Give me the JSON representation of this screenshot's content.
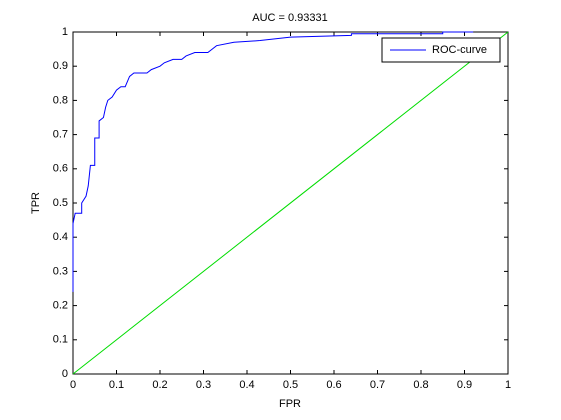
{
  "chart_data": {
    "type": "line",
    "title": "AUC = 0.93331",
    "xlabel": "FPR",
    "ylabel": "TPR",
    "series": [
      {
        "name": "ROC-curve",
        "color": "#0000ff",
        "x": [
          0,
          0,
          0.005,
          0.02,
          0.02,
          0.03,
          0.035,
          0.04,
          0.05,
          0.05,
          0.06,
          0.06,
          0.07,
          0.075,
          0.08,
          0.09,
          0.1,
          0.11,
          0.12,
          0.13,
          0.14,
          0.17,
          0.18,
          0.2,
          0.21,
          0.23,
          0.25,
          0.26,
          0.28,
          0.31,
          0.32,
          0.33,
          0.37,
          0.43,
          0.5,
          0.64,
          0.64,
          0.85,
          0.85,
          0.92
        ],
        "values": [
          0.24,
          0.44,
          0.47,
          0.47,
          0.5,
          0.52,
          0.55,
          0.61,
          0.61,
          0.69,
          0.69,
          0.74,
          0.75,
          0.78,
          0.8,
          0.81,
          0.83,
          0.84,
          0.84,
          0.87,
          0.88,
          0.88,
          0.89,
          0.9,
          0.91,
          0.92,
          0.92,
          0.93,
          0.94,
          0.94,
          0.95,
          0.96,
          0.97,
          0.975,
          0.985,
          0.99,
          0.995,
          0.995,
          1,
          1
        ]
      }
    ],
    "reference_line": {
      "color": "#00dd00",
      "x": [
        0,
        1
      ],
      "values": [
        0,
        1
      ]
    },
    "xlim": [
      0,
      1
    ],
    "ylim": [
      0,
      1
    ],
    "xticks": [
      0,
      0.1,
      0.2,
      0.3,
      0.4,
      0.5,
      0.6,
      0.7,
      0.8,
      0.9,
      1
    ],
    "yticks": [
      0,
      0.1,
      0.2,
      0.3,
      0.4,
      0.5,
      0.6,
      0.7,
      0.8,
      0.9,
      1
    ],
    "legend": "top-right"
  }
}
